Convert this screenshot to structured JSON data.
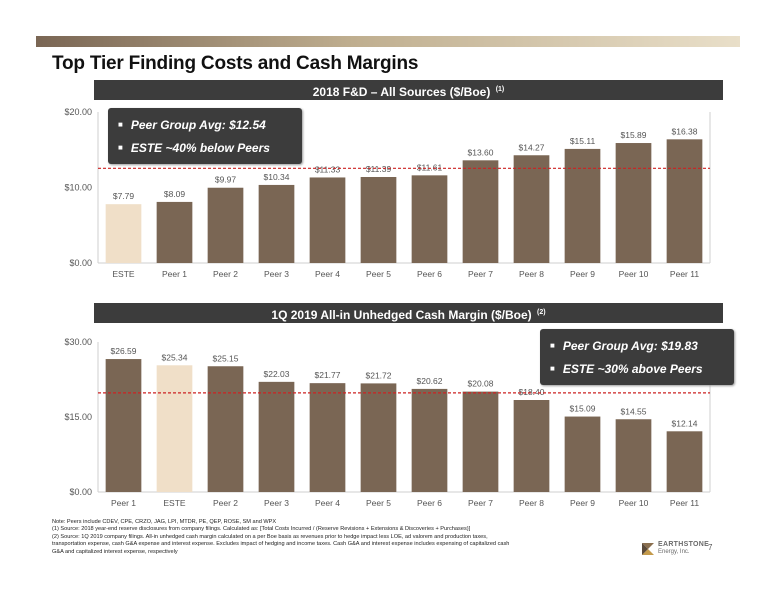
{
  "title": "Top Tier Finding Costs and Cash Margins",
  "colors": {
    "bar": "#7a6654",
    "highlight": "#f0dfc8",
    "avg_line": "#cc2222",
    "header_bg": "#3c3c3c",
    "grid": "#cfcfcf"
  },
  "chart_data": [
    {
      "type": "bar",
      "title": "2018 F&D – All Sources ($/Boe)",
      "footnote_ref": "(1)",
      "categories": [
        "ESTE",
        "Peer 1",
        "Peer 2",
        "Peer 3",
        "Peer 4",
        "Peer 5",
        "Peer 6",
        "Peer 7",
        "Peer 8",
        "Peer 9",
        "Peer 10",
        "Peer 11"
      ],
      "values": [
        7.79,
        8.09,
        9.97,
        10.34,
        11.33,
        11.39,
        11.61,
        13.6,
        14.27,
        15.11,
        15.89,
        16.38
      ],
      "data_labels": [
        "$7.79",
        "$8.09",
        "$9.97",
        "$10.34",
        "$11.33",
        "$11.39",
        "$11.61",
        "$13.60",
        "$14.27",
        "$15.11",
        "$15.89",
        "$16.38"
      ],
      "highlight_category": "ESTE",
      "average": 12.54,
      "ylim": [
        0,
        20
      ],
      "yticks": [
        0,
        10,
        20
      ],
      "ytick_labels": [
        "$0.00",
        "$10.00",
        "$20.00"
      ],
      "grid": false,
      "callout": [
        "Peer Group Avg: $12.54",
        "ESTE ~40% below Peers"
      ]
    },
    {
      "type": "bar",
      "title": "1Q 2019 All-in Unhedged Cash Margin ($/Boe)",
      "footnote_ref": "(2)",
      "categories": [
        "Peer 1",
        "ESTE",
        "Peer 2",
        "Peer 3",
        "Peer 4",
        "Peer 5",
        "Peer 6",
        "Peer 7",
        "Peer 8",
        "Peer 9",
        "Peer 10",
        "Peer 11"
      ],
      "values": [
        26.59,
        25.34,
        25.15,
        22.03,
        21.77,
        21.72,
        20.62,
        20.08,
        18.4,
        15.09,
        14.55,
        12.14
      ],
      "data_labels": [
        "$26.59",
        "$25.34",
        "$25.15",
        "$22.03",
        "$21.77",
        "$21.72",
        "$20.62",
        "$20.08",
        "$18.40",
        "$15.09",
        "$14.55",
        "$12.14"
      ],
      "highlight_category": "ESTE",
      "average": 19.83,
      "ylim": [
        0,
        30
      ],
      "yticks": [
        0,
        15,
        30
      ],
      "ytick_labels": [
        "$0.00",
        "$15.00",
        "$30.00"
      ],
      "grid": false,
      "callout": [
        "Peer Group Avg: $19.83",
        "ESTE ~30% above Peers"
      ]
    }
  ],
  "notes": {
    "note": "Note:  Peers include CDEV, CPE, CRZO, JAG, LPI, MTDR, PE, QEP, ROSE, SM and WPX",
    "n1": "(1)   Source: 2018 year-end reserve disclosures from company filings.  Calculated as: [Total Costs Incurred / (Reserve Revisions + Extensions & Discoveries + Purchases)]",
    "n2a": "(2)   Source: 1Q 2019 company filings. All-in unhedged cash margin calculated on a per Boe basis as revenues prior to hedge impact less LOE, ad valorem and production taxes,",
    "n2b": "        transportation expense, cash G&A expense and interest expense. Excludes impact of hedging and income taxes.  Cash G&A and interest expense includes expensing of capitalized cash",
    "n2c": "        G&A and capitalized interest expense, respectively"
  },
  "logo": {
    "name": "EARTHSTONE",
    "sub": "Energy, Inc."
  },
  "page_number": "7"
}
